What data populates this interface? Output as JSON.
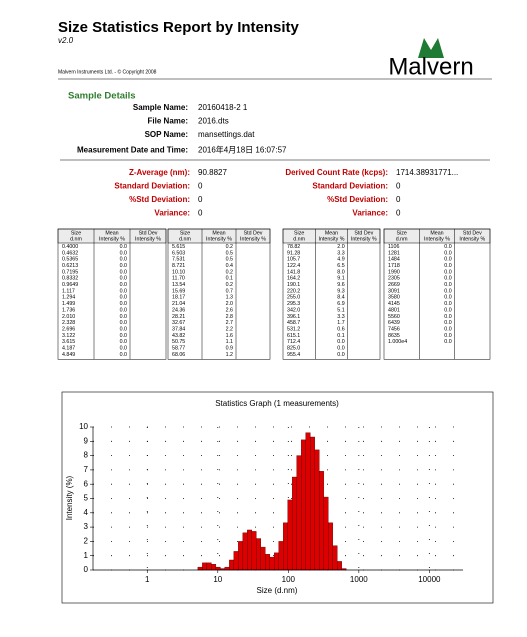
{
  "header": {
    "title": "Size Statistics Report by Intensity",
    "version": "v2.0",
    "copyright": "Malvern Instruments Ltd. - © Copyright 2008",
    "logo": "Malvern"
  },
  "sample_details": {
    "heading": "Sample Details",
    "fields": [
      {
        "label": "Sample Name:",
        "value": "20160418-2 1"
      },
      {
        "label": "File Name:",
        "value": "2016.dts"
      },
      {
        "label": "SOP Name:",
        "value": "mansettings.dat"
      },
      {
        "label": "Measurement Date and Time:",
        "value": "2016年4月18日 16:07:57"
      }
    ]
  },
  "results": {
    "left": [
      {
        "label": "Z-Average (nm):",
        "value": "90.8827"
      },
      {
        "label": "Standard Deviation:",
        "value": "0"
      },
      {
        "label": "%Std Deviation:",
        "value": "0"
      },
      {
        "label": "Variance:",
        "value": "0"
      }
    ],
    "right": [
      {
        "label": "Derived Count Rate (kcps):",
        "value": "1714.38931771..."
      },
      {
        "label": "Standard Deviation:",
        "value": "0"
      },
      {
        "label": "%Std Deviation:",
        "value": "0"
      },
      {
        "label": "Variance:",
        "value": "0"
      }
    ]
  },
  "tables": [
    {
      "columns": [
        [
          "Size",
          "d.nm"
        ],
        [
          "Mean",
          "Intensity %"
        ],
        [
          "Std Dev",
          "Intensity %"
        ]
      ],
      "rows": [
        [
          "0.4000",
          "0.0"
        ],
        [
          "0.4632",
          "0.0"
        ],
        [
          "0.5365",
          "0.0"
        ],
        [
          "0.6213",
          "0.0"
        ],
        [
          "0.7195",
          "0.0"
        ],
        [
          "0.8332",
          "0.0"
        ],
        [
          "0.9649",
          "0.0"
        ],
        [
          "1.117",
          "0.0"
        ],
        [
          "1.294",
          "0.0"
        ],
        [
          "1.499",
          "0.0"
        ],
        [
          "1.736",
          "0.0"
        ],
        [
          "2.010",
          "0.0"
        ],
        [
          "2.328",
          "0.0"
        ],
        [
          "2.696",
          "0.0"
        ],
        [
          "3.122",
          "0.0"
        ],
        [
          "3.615",
          "0.0"
        ],
        [
          "4.187",
          "0.0"
        ],
        [
          "4.849",
          "0.0"
        ]
      ]
    },
    {
      "columns": [
        [
          "Size",
          "d.nm"
        ],
        [
          "Mean",
          "Intensity %"
        ],
        [
          "Std Dev",
          "Intensity %"
        ]
      ],
      "rows": [
        [
          "5.615",
          "0.2"
        ],
        [
          "6.503",
          "0.5"
        ],
        [
          "7.531",
          "0.5"
        ],
        [
          "8.721",
          "0.4"
        ],
        [
          "10.10",
          "0.2"
        ],
        [
          "11.70",
          "0.1"
        ],
        [
          "13.54",
          "0.2"
        ],
        [
          "15.69",
          "0.7"
        ],
        [
          "18.17",
          "1.3"
        ],
        [
          "21.04",
          "2.0"
        ],
        [
          "24.36",
          "2.6"
        ],
        [
          "28.21",
          "2.8"
        ],
        [
          "32.67",
          "2.7"
        ],
        [
          "37.84",
          "2.2"
        ],
        [
          "43.82",
          "1.6"
        ],
        [
          "50.75",
          "1.1"
        ],
        [
          "58.77",
          "0.9"
        ],
        [
          "68.06",
          "1.2"
        ]
      ]
    },
    {
      "columns": [
        [
          "Size",
          "d.nm"
        ],
        [
          "Mean",
          "Intensity %"
        ],
        [
          "Std Dev",
          "Intensity %"
        ]
      ],
      "rows": [
        [
          "78.82",
          "2.0"
        ],
        [
          "91.28",
          "3.3"
        ],
        [
          "105.7",
          "4.9"
        ],
        [
          "122.4",
          "6.5"
        ],
        [
          "141.8",
          "8.0"
        ],
        [
          "164.2",
          "9.1"
        ],
        [
          "190.1",
          "9.6"
        ],
        [
          "220.2",
          "9.3"
        ],
        [
          "255.0",
          "8.4"
        ],
        [
          "295.3",
          "6.9"
        ],
        [
          "342.0",
          "5.1"
        ],
        [
          "396.1",
          "3.3"
        ],
        [
          "458.7",
          "1.7"
        ],
        [
          "531.2",
          "0.6"
        ],
        [
          "615.1",
          "0.1"
        ],
        [
          "712.4",
          "0.0"
        ],
        [
          "825.0",
          "0.0"
        ],
        [
          "955.4",
          "0.0"
        ]
      ]
    },
    {
      "columns": [
        [
          "Size",
          "d.nm"
        ],
        [
          "Mean",
          "Intensity %"
        ],
        [
          "Std Dev",
          "Intensity %"
        ]
      ],
      "rows": [
        [
          "1106",
          "0.0"
        ],
        [
          "1281",
          "0.0"
        ],
        [
          "1484",
          "0.0"
        ],
        [
          "1718",
          "0.0"
        ],
        [
          "1990",
          "0.0"
        ],
        [
          "2305",
          "0.0"
        ],
        [
          "2669",
          "0.0"
        ],
        [
          "3091",
          "0.0"
        ],
        [
          "3580",
          "0.0"
        ],
        [
          "4145",
          "0.0"
        ],
        [
          "4801",
          "0.0"
        ],
        [
          "5560",
          "0.0"
        ],
        [
          "6439",
          "0.0"
        ],
        [
          "7456",
          "0.0"
        ],
        [
          "8635",
          "0.0"
        ],
        [
          "1.000e4",
          "0.0"
        ]
      ]
    }
  ],
  "chart": {
    "type": "histogram",
    "title": "Statistics Graph (1 measurements)",
    "xlabel": "Size (d.nm)",
    "ylabel": "Intensity (%)",
    "log_x": true,
    "xlim": [
      0.17,
      30000
    ],
    "xticks": [
      1,
      10,
      100,
      1000,
      10000
    ],
    "ylim": [
      0,
      10
    ],
    "yticks": [
      0,
      1,
      2,
      3,
      4,
      5,
      6,
      7,
      8,
      9,
      10
    ],
    "grid": true,
    "color": "#dd0000"
  }
}
